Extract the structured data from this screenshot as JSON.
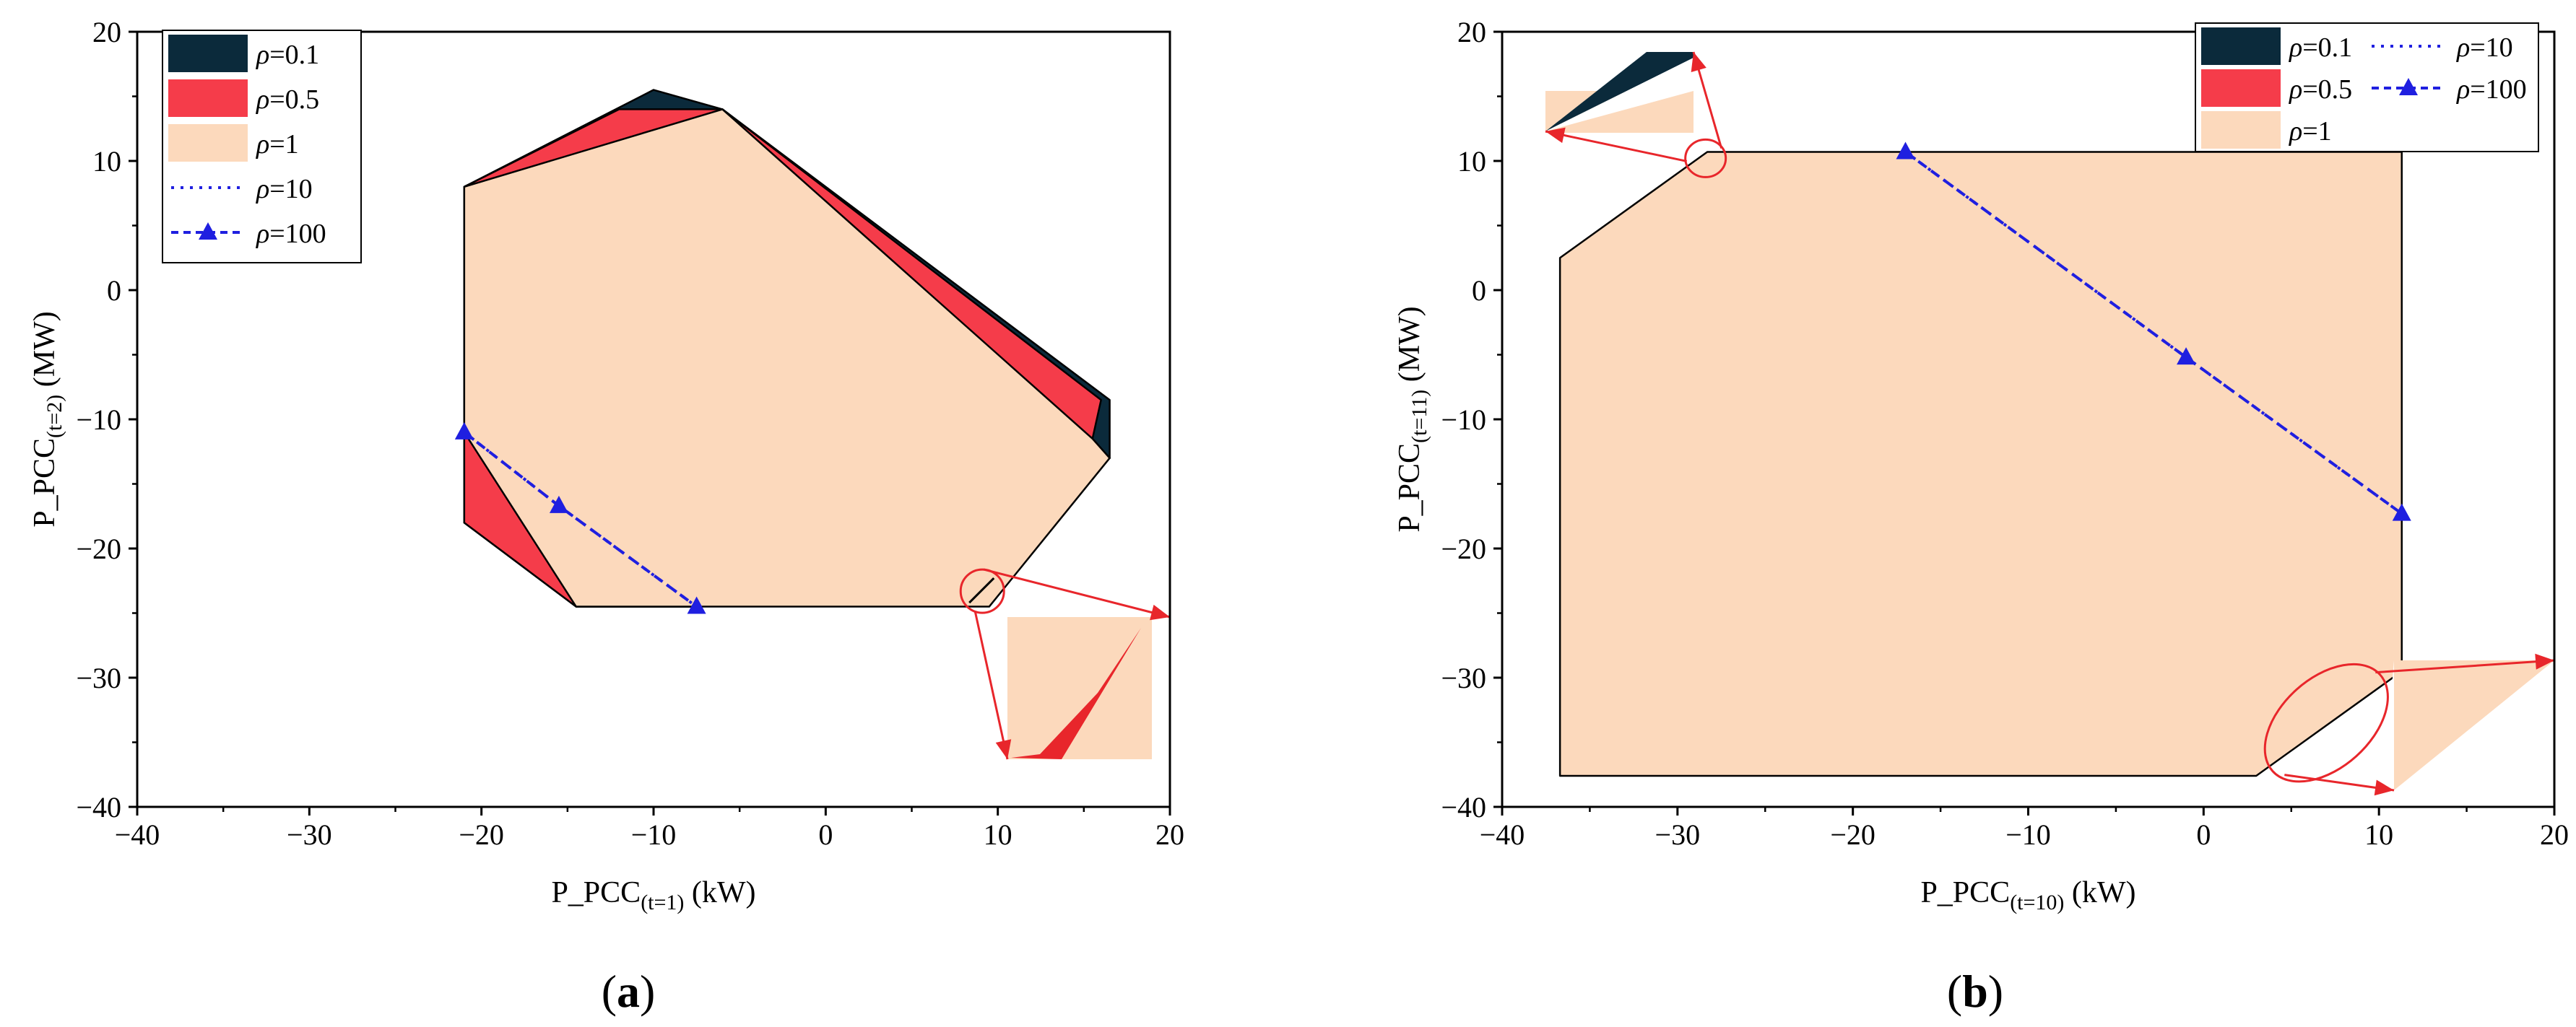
{
  "chart_data": [
    {
      "type": "area",
      "panel_label": "a",
      "xlabel": {
        "main": "P_PCC",
        "sub": "(t=1)",
        "unit": " (kW)"
      },
      "ylabel": {
        "main": "P_PCC",
        "sub": "(t=2)",
        "unit": " (MW)"
      },
      "xlim": [
        -40,
        20
      ],
      "ylim": [
        -40,
        20
      ],
      "xticks": [
        -40,
        -30,
        -20,
        -10,
        0,
        10,
        20
      ],
      "yticks": [
        -40,
        -30,
        -20,
        -10,
        0,
        10,
        20
      ],
      "x_tick_labels": [
        "−40",
        "−30",
        "−20",
        "−10",
        "0",
        "10",
        "20"
      ],
      "y_tick_labels": [
        "−40",
        "−30",
        "−20",
        "−10",
        "0",
        "10",
        "20"
      ],
      "legend_position": "top-left",
      "legend": [
        {
          "symbol": "ρ",
          "label": "=0.1",
          "style": "fill",
          "color": "#0b2a3b"
        },
        {
          "symbol": "ρ",
          "label": "=0.5",
          "style": "fill",
          "color": "#f53c4a"
        },
        {
          "symbol": "ρ",
          "label": "=1",
          "style": "fill",
          "color": "#fcd9bc"
        },
        {
          "symbol": "ρ",
          "label": "=10",
          "style": "dotted",
          "color": "#1f1fe0"
        },
        {
          "symbol": "ρ",
          "label": "=100",
          "style": "dash-triangle",
          "color": "#1f1fe0"
        }
      ],
      "series": [
        {
          "name": "ρ=0.1",
          "style": "fill",
          "color": "#0b2a3b",
          "polygons": [
            [
              [
                -21,
                8
              ],
              [
                -10,
                15.5
              ],
              [
                -6,
                14
              ],
              [
                16.5,
                -8.5
              ],
              [
                16.5,
                -13
              ],
              [
                -7.5,
                -24.5
              ],
              [
                -14.5,
                -24.5
              ],
              [
                -21,
                -18
              ],
              [
                -21,
                -11
              ]
            ]
          ]
        },
        {
          "name": "ρ=0.5",
          "style": "fill",
          "color": "#f53c4a",
          "polygons": [
            [
              [
                -21,
                8
              ],
              [
                -12,
                14
              ],
              [
                -6,
                14
              ],
              [
                16,
                -8.5
              ],
              [
                15.5,
                -11.5
              ],
              [
                16.5,
                -13
              ],
              [
                -7.5,
                -24.5
              ],
              [
                -14.5,
                -24.5
              ],
              [
                -21,
                -18
              ],
              [
                -21,
                -11
              ]
            ]
          ]
        },
        {
          "name": "ρ=1",
          "style": "fill",
          "color": "#fcd9bc",
          "polygons": [
            [
              [
                -21,
                8
              ],
              [
                -6,
                14
              ],
              [
                15.5,
                -11.5
              ],
              [
                16.5,
                -13
              ],
              [
                9.5,
                -24.5
              ],
              [
                -14.5,
                -24.5
              ],
              [
                -21,
                -11
              ]
            ]
          ]
        },
        {
          "name": "ρ=10",
          "style": "dotted",
          "color": "#1f1fe0",
          "x": [
            -21,
            -15.5,
            -7.5
          ],
          "y": [
            -11,
            -16.7,
            -24.5
          ]
        },
        {
          "name": "ρ=100",
          "style": "dash-triangle",
          "color": "#1f1fe0",
          "x": [
            -21,
            -15.5,
            -7.5
          ],
          "y": [
            -11,
            -16.7,
            -24.5
          ]
        }
      ],
      "zoom_inset": {
        "circle_center": [
          9.1,
          -23.3
        ],
        "type": "magnified-detail"
      }
    },
    {
      "type": "area",
      "panel_label": "b",
      "xlabel": {
        "main": "P_PCC",
        "sub": "(t=10)",
        "unit": " (kW)"
      },
      "ylabel": {
        "main": "P_PCC",
        "sub": "(t=11)",
        "unit": " (MW)"
      },
      "xlim": [
        -40,
        20
      ],
      "ylim": [
        -40,
        20
      ],
      "xticks": [
        -40,
        -30,
        -20,
        -10,
        0,
        10,
        20
      ],
      "yticks": [
        -40,
        -30,
        -20,
        -10,
        0,
        10,
        20
      ],
      "x_tick_labels": [
        "−40",
        "−30",
        "−20",
        "−10",
        "0",
        "10",
        "20"
      ],
      "y_tick_labels": [
        "−40",
        "−30",
        "−20",
        "−10",
        "0",
        "10",
        "20"
      ],
      "legend_position": "top-right",
      "legend": [
        {
          "symbol": "ρ",
          "label": "=0.1",
          "style": "fill",
          "color": "#0b2a3b"
        },
        {
          "symbol": "ρ",
          "label": "=0.5",
          "style": "fill",
          "color": "#f53c4a"
        },
        {
          "symbol": "ρ",
          "label": "=1",
          "style": "fill",
          "color": "#fcd9bc"
        },
        {
          "symbol": "ρ",
          "label": "=10",
          "style": "dotted",
          "color": "#1f1fe0"
        },
        {
          "symbol": "ρ",
          "label": "=100",
          "style": "dash-triangle",
          "color": "#1f1fe0"
        }
      ],
      "series": [
        {
          "name": "ρ=1",
          "style": "fill",
          "color": "#fcd9bc",
          "polygons": [
            [
              [
                -36.7,
                2.5
              ],
              [
                -28.3,
                10.7
              ],
              [
                11.3,
                10.7
              ],
              [
                11.3,
                -29.5
              ],
              [
                3.0,
                -37.6
              ],
              [
                -36.7,
                -37.6
              ]
            ]
          ]
        },
        {
          "name": "ρ=10",
          "style": "dotted",
          "color": "#1f1fe0",
          "x": [
            -17,
            -1,
            11.3
          ],
          "y": [
            10.7,
            -5.2,
            -17.3
          ]
        },
        {
          "name": "ρ=100",
          "style": "dash-triangle",
          "color": "#1f1fe0",
          "x": [
            -17,
            -1,
            11.3
          ],
          "y": [
            10.7,
            -5.2,
            -17.3
          ]
        }
      ],
      "zoom_insets": [
        {
          "circle_center": [
            -28.4,
            10.2
          ],
          "type": "magnified-detail"
        },
        {
          "circle_center": [
            7.0,
            -33.5
          ],
          "type": "magnified-detail"
        }
      ]
    }
  ]
}
